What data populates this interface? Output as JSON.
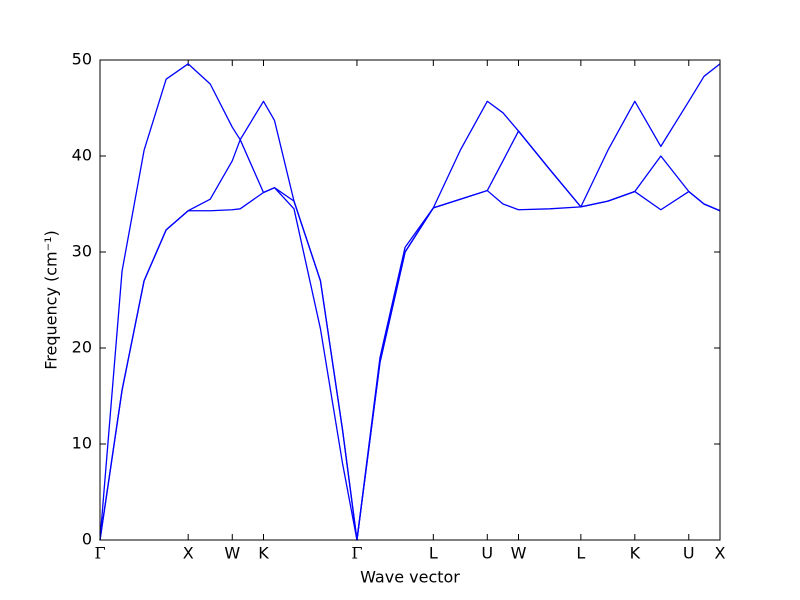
{
  "chart_data": {
    "type": "line",
    "xlabel": "Wave vector",
    "ylabel": "Frequency (cm⁻¹)",
    "x": [
      0,
      0.25,
      0.5,
      0.75,
      1,
      1.25,
      1.5,
      1.59,
      1.854,
      1.979,
      2.2,
      2.5,
      2.75,
      2.914,
      3.175,
      3.46,
      3.78,
      4.086,
      4.392,
      4.57,
      4.746,
      5.1,
      5.453,
      5.76,
      6.065,
      6.36,
      6.677,
      6.85,
      7.031
    ],
    "series": [
      {
        "color": "#0000ff",
        "values": [
          0,
          15.6,
          27,
          32.3,
          34.3,
          34.3,
          34.4,
          34.5,
          36.2,
          36.7,
          34.5,
          22,
          8,
          0,
          18.5,
          30,
          34.6,
          35.5,
          36.4,
          35,
          34.4,
          34.5,
          34.7,
          35.3,
          36.3,
          34.4,
          36.3,
          35,
          34.3
        ]
      },
      {
        "color": "#0000ff",
        "values": [
          0,
          15.6,
          27,
          32.3,
          34.3,
          35.5,
          39.5,
          41.7,
          36.2,
          36.7,
          35.3,
          27,
          11.5,
          0,
          18.5,
          30,
          34.6,
          35.5,
          36.4,
          39.5,
          42.6,
          38.6,
          34.7,
          35.3,
          36.3,
          40,
          36.3,
          35,
          34.3
        ]
      },
      {
        "color": "#0000ff",
        "values": [
          0,
          28,
          40.6,
          48,
          49.6,
          47.5,
          43,
          41.7,
          45.7,
          43.7,
          35.3,
          27,
          11.5,
          0,
          19,
          30.5,
          34.6,
          40.6,
          45.7,
          44.5,
          42.6,
          38.6,
          34.7,
          40.6,
          45.7,
          41,
          45.7,
          48.3,
          49.6
        ]
      }
    ],
    "xlim": [
      0,
      7.031
    ],
    "ylim": [
      0,
      50
    ],
    "yticks": [
      0,
      10,
      20,
      30,
      40,
      50
    ],
    "xticks": [
      {
        "value": 0,
        "label": "Γ"
      },
      {
        "value": 1,
        "label": "X"
      },
      {
        "value": 1.5,
        "label": "W"
      },
      {
        "value": 1.854,
        "label": "K"
      },
      {
        "value": 2.914,
        "label": "Γ"
      },
      {
        "value": 3.78,
        "label": "L"
      },
      {
        "value": 4.392,
        "label": "U"
      },
      {
        "value": 4.746,
        "label": "W"
      },
      {
        "value": 5.453,
        "label": "L"
      },
      {
        "value": 6.065,
        "label": "K"
      },
      {
        "value": 6.677,
        "label": "U"
      },
      {
        "value": 7.031,
        "label": "X"
      }
    ]
  }
}
